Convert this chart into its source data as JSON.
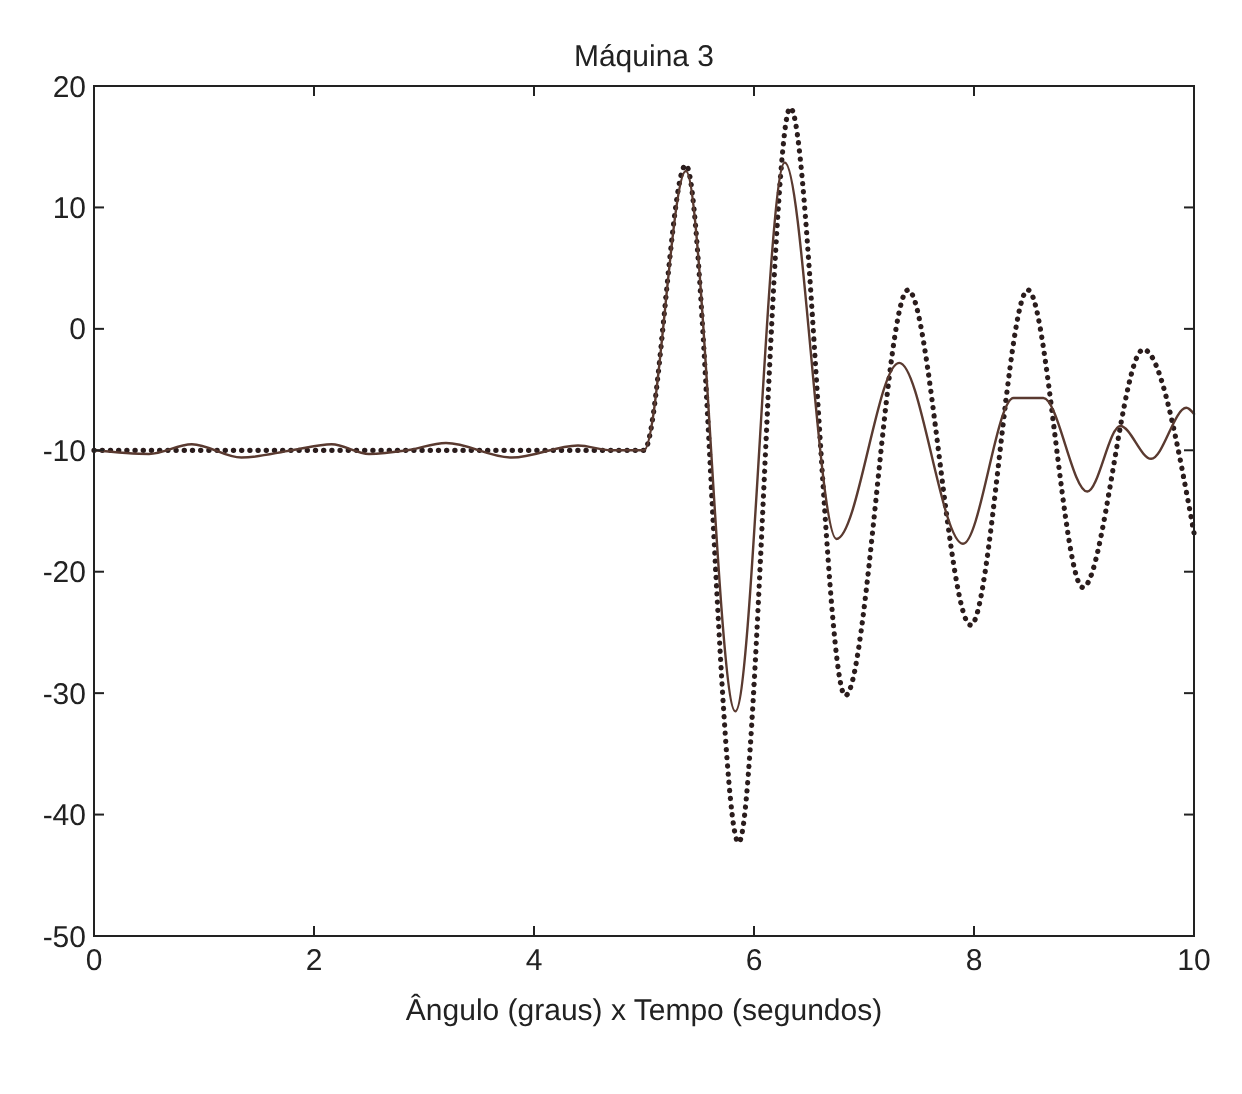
{
  "chart_data": {
    "type": "line",
    "title": "Máquina 3",
    "xlabel": "Ângulo (graus) x Tempo (segundos)",
    "xlim": [
      0,
      10
    ],
    "xticks": [
      0,
      2,
      4,
      6,
      8,
      10
    ],
    "ylim": [
      -50,
      20
    ],
    "yticks": [
      -50,
      -40,
      -30,
      -20,
      -10,
      0,
      10,
      20
    ],
    "grid": false,
    "series": [
      {
        "color": "#2a1c1c",
        "line_style": "dotted",
        "x": [
          0,
          5.0,
          5.38,
          5.86,
          6.33,
          6.83,
          7.4,
          7.97,
          8.49,
          8.99,
          9.54,
          10
        ],
        "values": [
          -10,
          -10,
          13.5,
          -42.3,
          18.2,
          -30.2,
          3.2,
          -24.4,
          3.2,
          -21.3,
          -1.7,
          -16.8
        ]
      },
      {
        "color": "#5a3a30",
        "line_style": "solid",
        "x": [
          0,
          0.5,
          0.89,
          1.34,
          1.8,
          2.16,
          2.5,
          2.85,
          3.2,
          3.8,
          4.4,
          4.7,
          5.0,
          5.38,
          5.83,
          6.28,
          6.75,
          7.32,
          7.9,
          8.36,
          8.63,
          9.03,
          9.33,
          9.61,
          9.93,
          10
        ],
        "values": [
          -10,
          -10.3,
          -9.5,
          -10.6,
          -10,
          -9.5,
          -10.3,
          -10,
          -9.4,
          -10.6,
          -9.6,
          -10,
          -10,
          13,
          -31.5,
          13.7,
          -17.3,
          -2.8,
          -17.7,
          -5.7,
          -5.7,
          -13.4,
          -8.0,
          -10.7,
          -6.5,
          -7
        ]
      }
    ]
  }
}
